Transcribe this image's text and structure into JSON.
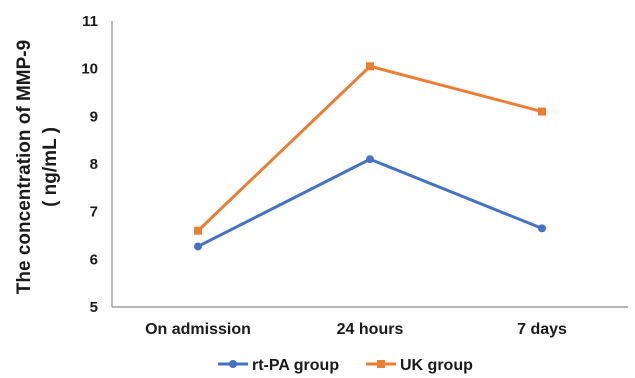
{
  "chart_data": {
    "type": "line",
    "categories": [
      "On admission",
      "24 hours",
      "7 days"
    ],
    "series": [
      {
        "name": "rt-PA group",
        "values": [
          6.27,
          8.1,
          6.65
        ],
        "color": "#4472C4",
        "marker": "circle"
      },
      {
        "name": "UK group",
        "values": [
          6.6,
          10.05,
          9.1
        ],
        "color": "#ED7D31",
        "marker": "square"
      }
    ],
    "ylabel_line1": "The concentration of MMP-9",
    "ylabel_line2": "( ng/mL )",
    "ylim": [
      5,
      11
    ],
    "yticks": [
      "5",
      "6",
      "7",
      "8",
      "9",
      "10",
      "11"
    ],
    "grid": false,
    "legend_position": "bottom"
  }
}
